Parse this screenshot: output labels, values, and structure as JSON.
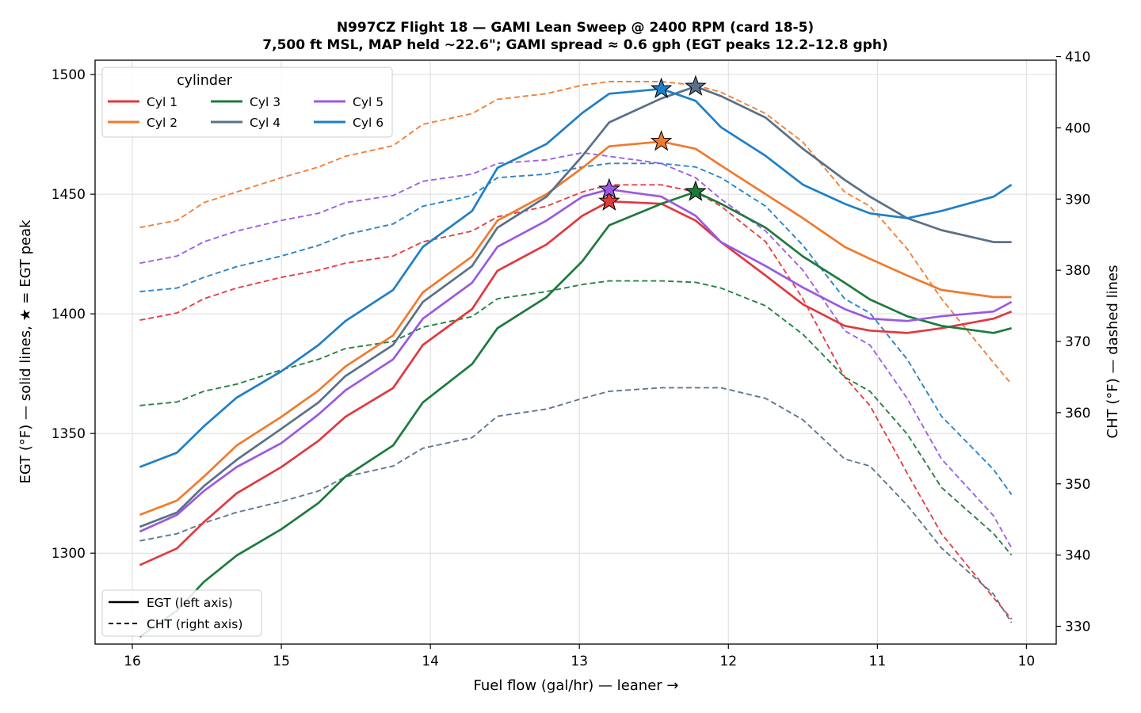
{
  "chart_data": {
    "type": "line",
    "title": "N997CZ Flight 18 — GAMI Lean Sweep @ 2400 RPM (card 18-5)",
    "subtitle": "7,500 ft MSL, MAP held ~22.6\"; GAMI spread ≈ 0.6 gph (EGT peaks 12.2–12.8 gph)",
    "xlabel": "Fuel flow (gal/hr)   —   leaner →",
    "ylabel_left": "EGT (°F)   — solid lines, ★ = EGT peak",
    "ylabel_right": "CHT (°F)   — dashed lines",
    "x_reversed": true,
    "xlim": [
      16.25,
      9.8
    ],
    "ylim_left": [
      1262,
      1506
    ],
    "ylim_right": [
      327.5,
      409.5
    ],
    "x_ticks": [
      16,
      15,
      14,
      13,
      12,
      11,
      10
    ],
    "y_ticks_left": [
      1300,
      1350,
      1400,
      1450,
      1500
    ],
    "y_ticks_right": [
      330,
      340,
      350,
      360,
      370,
      380,
      390,
      400,
      410
    ],
    "grid": true,
    "legend_title": "cylinder",
    "legend_location": "upper-left",
    "style_legend_location": "lower-left",
    "style_legend": [
      {
        "label": "EGT (left axis)",
        "style": "solid"
      },
      {
        "label": "CHT (right axis)",
        "style": "dashed"
      }
    ],
    "x": [
      15.95,
      15.7,
      15.52,
      15.3,
      15.0,
      14.75,
      14.57,
      14.25,
      14.05,
      13.72,
      13.55,
      13.22,
      12.98,
      12.8,
      12.45,
      12.22,
      12.05,
      11.75,
      11.5,
      11.22,
      11.05,
      10.8,
      10.57,
      10.22,
      10.1
    ],
    "series": [
      {
        "name": "Cyl 1",
        "color": "#e0393e",
        "egt": [
          1295,
          1302,
          1313,
          1325,
          1336,
          1347,
          1357,
          1369,
          1387,
          1402,
          1418,
          1429,
          1441,
          1447,
          1446,
          1439,
          1430,
          1416,
          1404,
          1395,
          1393,
          1392,
          1394,
          1398,
          1401
        ],
        "cht": [
          373,
          374,
          376,
          377.5,
          379,
          380,
          381,
          382,
          384,
          385.5,
          387.5,
          389,
          391,
          392,
          392,
          391,
          389,
          384,
          376,
          365,
          361,
          351.5,
          343,
          334,
          331
        ],
        "peak": {
          "x": 12.8,
          "egt": 1447
        }
      },
      {
        "name": "Cyl 2",
        "color": "#f07a2e",
        "egt": [
          1316,
          1322,
          1332,
          1345,
          1357,
          1368,
          1378,
          1391,
          1409,
          1424,
          1439,
          1450,
          1461,
          1470,
          1472,
          1469,
          1462,
          1450,
          1440,
          1428,
          1423,
          1416,
          1410,
          1407,
          1407
        ],
        "cht": [
          386,
          387,
          389.5,
          391,
          393,
          394.5,
          396,
          397.5,
          400.5,
          402,
          404,
          404.8,
          406,
          406.5,
          406.5,
          406,
          405,
          402,
          398,
          391,
          389,
          383,
          376,
          367,
          364
        ],
        "peak": {
          "x": 12.45,
          "egt": 1472
        }
      },
      {
        "name": "Cyl 3",
        "color": "#1e7a3c",
        "egt": [
          1265,
          1276,
          1288,
          1299,
          1310,
          1321,
          1332,
          1345,
          1363,
          1379,
          1394,
          1407,
          1422,
          1437,
          1446,
          1451,
          1446,
          1436,
          1424,
          1413,
          1406,
          1399,
          1395,
          1392,
          1394
        ],
        "cht": [
          361,
          361.5,
          363,
          364,
          366,
          367.5,
          369,
          370,
          372,
          373.5,
          376,
          377,
          378,
          378.5,
          378.5,
          378.3,
          377.5,
          375,
          371,
          365,
          363,
          357,
          349.5,
          343,
          340
        ],
        "peak": {
          "x": 12.22,
          "egt": 1451
        }
      },
      {
        "name": "Cyl 4",
        "color": "#5a7088",
        "egt": [
          1311,
          1317,
          1328,
          1339,
          1352,
          1363,
          1374,
          1387,
          1405,
          1420,
          1436,
          1449,
          1466,
          1480,
          1490,
          1495,
          1491,
          1482,
          1469,
          1456,
          1449,
          1440,
          1435,
          1430,
          1430
        ],
        "cht": [
          342,
          343,
          344.5,
          346,
          347.5,
          349,
          351,
          352.5,
          355,
          356.5,
          359.5,
          360.5,
          362,
          363,
          363.5,
          363.5,
          363.5,
          362,
          359,
          353.5,
          352.5,
          347,
          341,
          334.5,
          330.5
        ],
        "peak": {
          "x": 12.22,
          "egt": 1495
        }
      },
      {
        "name": "Cyl 5",
        "color": "#9b59e0",
        "egt": [
          1309,
          1316,
          1326,
          1336,
          1346,
          1358,
          1368,
          1381,
          1398,
          1413,
          1428,
          1439,
          1449,
          1452,
          1449,
          1441,
          1430,
          1420,
          1411,
          1402,
          1398,
          1397,
          1399,
          1401,
          1405
        ],
        "cht": [
          381,
          382,
          384,
          385.5,
          387,
          388,
          389.5,
          390.5,
          392.5,
          393.5,
          395,
          395.5,
          396.5,
          396,
          395,
          393,
          390,
          385.5,
          380,
          371.5,
          369.5,
          362,
          353.5,
          345.5,
          341
        ],
        "peak": {
          "x": 12.8,
          "egt": 1452
        }
      },
      {
        "name": "Cyl 6",
        "color": "#1f7fc6",
        "egt": [
          1336,
          1342,
          1353,
          1365,
          1376,
          1387,
          1397,
          1410,
          1428,
          1443,
          1461,
          1471,
          1484,
          1492,
          1494,
          1489,
          1478,
          1466,
          1454,
          1446,
          1442,
          1440,
          1443,
          1449,
          1454
        ],
        "cht": [
          377,
          377.5,
          379,
          380.5,
          382,
          383.5,
          385,
          386.5,
          389,
          390.5,
          393,
          393.5,
          394.5,
          395,
          395,
          394.5,
          393,
          389,
          383.5,
          376,
          374,
          367.5,
          359.5,
          352,
          348.5
        ],
        "peak": {
          "x": 12.45,
          "egt": 1494
        }
      }
    ]
  }
}
